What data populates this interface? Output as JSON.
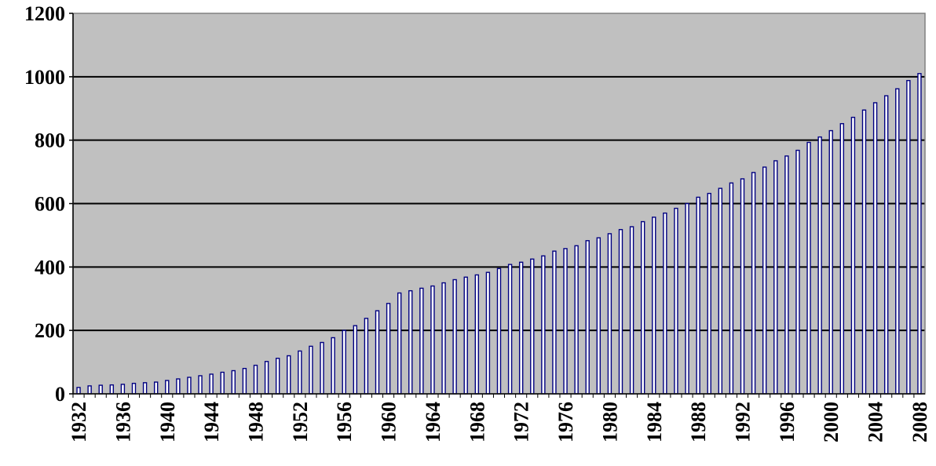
{
  "colors": {
    "plot_background": "#c0c0c0",
    "bar_fill": "#ffffff",
    "bar_edge": "#000080",
    "grid": "#000000",
    "text": "#000000"
  },
  "chart_data": {
    "type": "bar",
    "title": "",
    "xlabel": "",
    "ylabel": "",
    "ylim": [
      0,
      1200
    ],
    "yticks": [
      0,
      200,
      400,
      600,
      800,
      1000,
      1200
    ],
    "xtick_labels": [
      "1932",
      "1936",
      "1940",
      "1944",
      "1948",
      "1952",
      "1956",
      "1960",
      "1964",
      "1968",
      "1972",
      "1976",
      "1980",
      "1984",
      "1988",
      "1992",
      "1996",
      "2000",
      "2004",
      "2008"
    ],
    "grid": true,
    "legend": "none",
    "categories": [
      "1932",
      "1933",
      "1934",
      "1935",
      "1936",
      "1937",
      "1938",
      "1939",
      "1940",
      "1941",
      "1942",
      "1943",
      "1944",
      "1945",
      "1946",
      "1947",
      "1948",
      "1949",
      "1950",
      "1951",
      "1952",
      "1953",
      "1954",
      "1955",
      "1956",
      "1957",
      "1958",
      "1959",
      "1960",
      "1961",
      "1962",
      "1963",
      "1964",
      "1965",
      "1966",
      "1967",
      "1968",
      "1969",
      "1970",
      "1971",
      "1972",
      "1973",
      "1974",
      "1975",
      "1976",
      "1977",
      "1978",
      "1979",
      "1980",
      "1981",
      "1982",
      "1983",
      "1984",
      "1985",
      "1986",
      "1987",
      "1988",
      "1989",
      "1990",
      "1991",
      "1992",
      "1993",
      "1994",
      "1995",
      "1996",
      "1997",
      "1998",
      "1999",
      "2000",
      "2001",
      "2002",
      "2003",
      "2004",
      "2005",
      "2006",
      "2007",
      "2008"
    ],
    "values": [
      20,
      25,
      27,
      28,
      30,
      33,
      35,
      37,
      42,
      47,
      52,
      57,
      62,
      68,
      73,
      80,
      90,
      102,
      112,
      120,
      135,
      150,
      162,
      177,
      200,
      215,
      238,
      262,
      285,
      318,
      325,
      333,
      340,
      350,
      360,
      368,
      375,
      383,
      395,
      408,
      415,
      425,
      435,
      450,
      458,
      467,
      483,
      492,
      505,
      518,
      527,
      543,
      557,
      570,
      585,
      600,
      620,
      632,
      648,
      665,
      678,
      698,
      715,
      735,
      750,
      768,
      793,
      810,
      830,
      852,
      872,
      895,
      918,
      940,
      962,
      988,
      1010
    ]
  }
}
